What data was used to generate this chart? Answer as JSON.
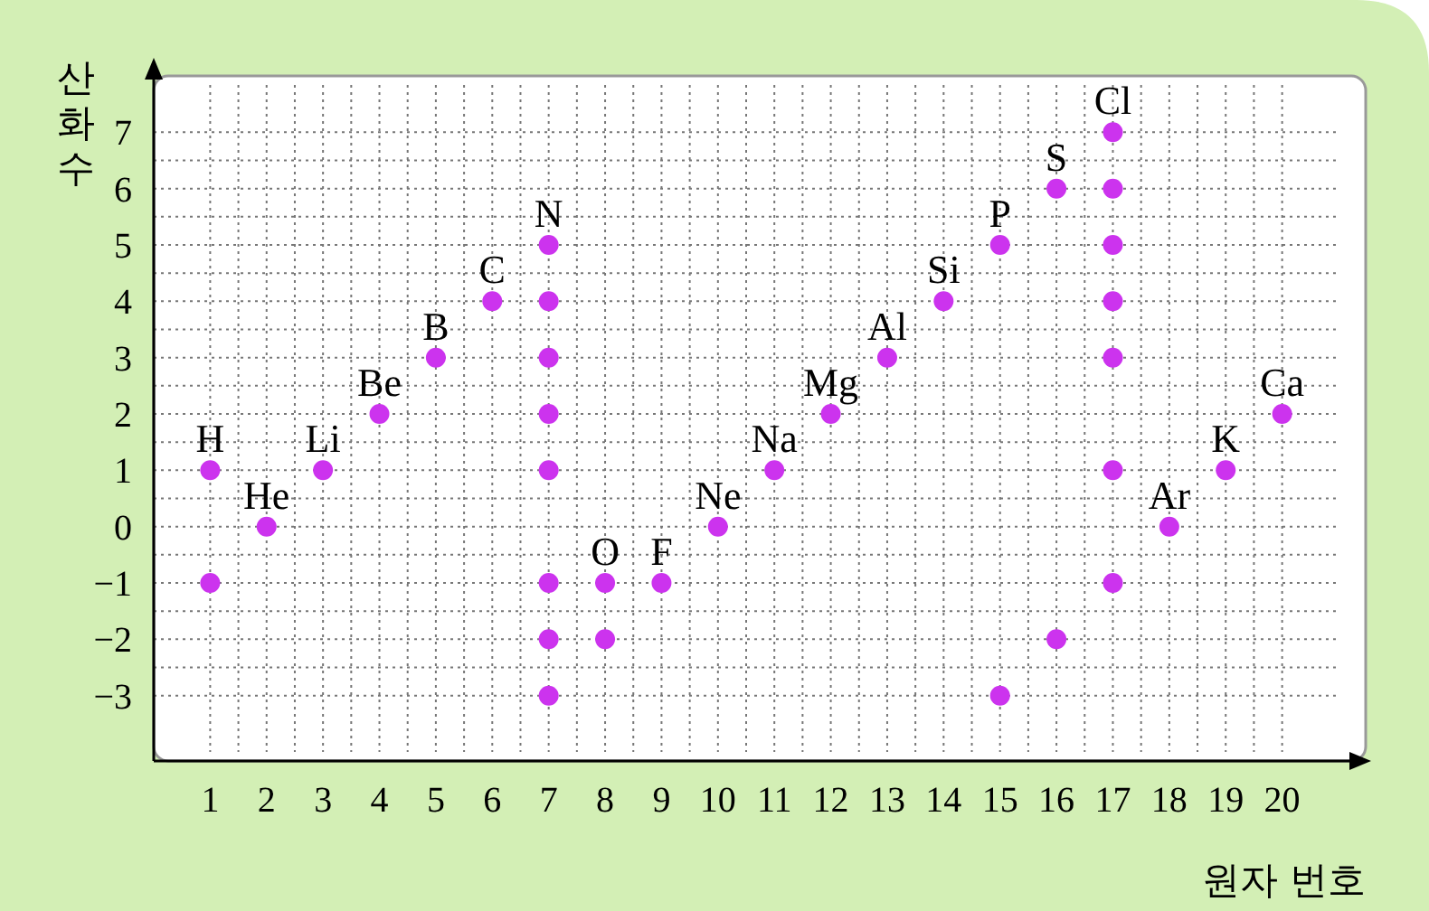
{
  "chart_data": {
    "type": "scatter",
    "xlabel": "원자 번호",
    "ylabel": "산화수",
    "series": [
      {
        "color": "#cc33ee",
        "x": [
          1,
          1,
          2,
          3,
          4,
          5,
          6,
          7,
          7,
          7,
          7,
          7,
          7,
          7,
          7,
          8,
          8,
          9,
          10,
          11,
          12,
          13,
          14,
          15,
          15,
          16,
          16,
          17,
          17,
          17,
          17,
          17,
          17,
          17,
          18,
          19,
          20
        ],
        "values": [
          1,
          -1,
          0,
          1,
          2,
          3,
          4,
          5,
          4,
          3,
          2,
          1,
          -1,
          -2,
          -3,
          -1,
          -2,
          -1,
          0,
          1,
          2,
          3,
          4,
          5,
          -3,
          6,
          -2,
          7,
          6,
          5,
          4,
          3,
          1,
          -1,
          0,
          1,
          2
        ]
      }
    ],
    "annotations": [
      {
        "text": "H",
        "x": 1,
        "y": 1
      },
      {
        "text": "He",
        "x": 2,
        "y": 0
      },
      {
        "text": "Li",
        "x": 3,
        "y": 1
      },
      {
        "text": "Be",
        "x": 4,
        "y": 2
      },
      {
        "text": "B",
        "x": 5,
        "y": 3
      },
      {
        "text": "C",
        "x": 6,
        "y": 4
      },
      {
        "text": "N",
        "x": 7,
        "y": 5
      },
      {
        "text": "O",
        "x": 8,
        "y": -1
      },
      {
        "text": "F",
        "x": 9,
        "y": -1
      },
      {
        "text": "Ne",
        "x": 10,
        "y": 0
      },
      {
        "text": "Na",
        "x": 11,
        "y": 1
      },
      {
        "text": "Mg",
        "x": 12,
        "y": 2
      },
      {
        "text": "Al",
        "x": 13,
        "y": 3
      },
      {
        "text": "Si",
        "x": 14,
        "y": 4
      },
      {
        "text": "P",
        "x": 15,
        "y": 5
      },
      {
        "text": "S",
        "x": 16,
        "y": 6
      },
      {
        "text": "Cl",
        "x": 17,
        "y": 7
      },
      {
        "text": "Ar",
        "x": 18,
        "y": 0
      },
      {
        "text": "K",
        "x": 19,
        "y": 1
      },
      {
        "text": "Ca",
        "x": 20,
        "y": 2
      }
    ],
    "xlim": [
      0,
      21
    ],
    "ylim": [
      -4,
      8
    ],
    "xticks": [
      1,
      2,
      3,
      4,
      5,
      6,
      7,
      8,
      9,
      10,
      11,
      12,
      13,
      14,
      15,
      16,
      17,
      18,
      19,
      20
    ],
    "yticks": [
      -3,
      -2,
      -1,
      0,
      1,
      2,
      3,
      4,
      5,
      6,
      7
    ],
    "grid": true,
    "marker": "circle"
  }
}
